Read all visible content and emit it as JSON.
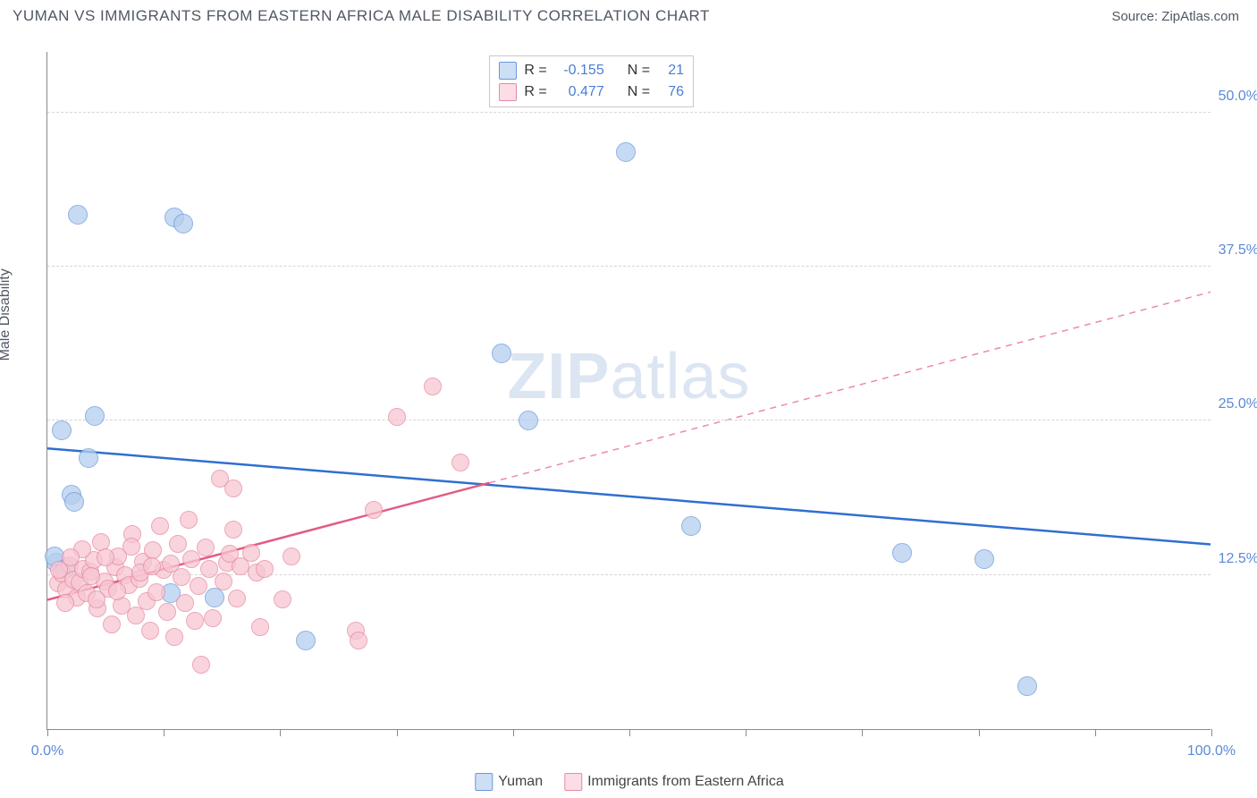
{
  "header": {
    "title": "YUMAN VS IMMIGRANTS FROM EASTERN AFRICA MALE DISABILITY CORRELATION CHART",
    "source": "Source: ZipAtlas.com"
  },
  "watermark": {
    "part1": "ZIP",
    "part2": "atlas"
  },
  "chart": {
    "type": "scatter",
    "y_axis_label": "Male Disability",
    "background_color": "#ffffff",
    "grid_color": "#d5d5d5",
    "axis_color": "#8a8a8a",
    "xlim": [
      0,
      100
    ],
    "ylim": [
      0,
      55
    ],
    "x_ticks": [
      0,
      10,
      20,
      30,
      40,
      50,
      60,
      70,
      80,
      90,
      100
    ],
    "x_tick_labels": {
      "0": "0.0%",
      "100": "100.0%"
    },
    "y_gridlines": [
      12.5,
      25.0,
      37.5,
      50.0
    ],
    "y_tick_labels": [
      "12.5%",
      "25.0%",
      "37.5%",
      "50.0%"
    ],
    "series": [
      {
        "name": "Yuman",
        "fill_color": "#b5cef0",
        "stroke_color": "#6a98d8",
        "swatch_fill": "#cddff5",
        "swatch_stroke": "#6a98d8",
        "marker_radius": 11,
        "R": "-0.155",
        "N": "21",
        "trend": {
          "color": "#2f6fd0",
          "width": 2.5,
          "x1": 0,
          "y1": 22.8,
          "x2": 100,
          "y2": 15.0,
          "dash_from_x": null
        },
        "points": [
          {
            "x": 1.2,
            "y": 24.2
          },
          {
            "x": 2.6,
            "y": 41.7
          },
          {
            "x": 2.1,
            "y": 19.0
          },
          {
            "x": 2.3,
            "y": 18.4
          },
          {
            "x": 3.5,
            "y": 22.0
          },
          {
            "x": 0.8,
            "y": 13.5
          },
          {
            "x": 4.1,
            "y": 25.4
          },
          {
            "x": 10.9,
            "y": 41.5
          },
          {
            "x": 11.7,
            "y": 41.0
          },
          {
            "x": 10.6,
            "y": 11.0
          },
          {
            "x": 14.4,
            "y": 10.7
          },
          {
            "x": 22.2,
            "y": 7.2
          },
          {
            "x": 39.0,
            "y": 30.5
          },
          {
            "x": 41.3,
            "y": 25.0
          },
          {
            "x": 49.7,
            "y": 46.8
          },
          {
            "x": 55.3,
            "y": 16.5
          },
          {
            "x": 73.4,
            "y": 14.3
          },
          {
            "x": 80.5,
            "y": 13.8
          },
          {
            "x": 84.2,
            "y": 3.5
          },
          {
            "x": 0.6,
            "y": 14.0
          },
          {
            "x": 1.5,
            "y": 13.0
          }
        ]
      },
      {
        "name": "Immigrants from Eastern Africa",
        "fill_color": "#f7c6d2",
        "stroke_color": "#e68aa3",
        "swatch_fill": "#fbdde5",
        "swatch_stroke": "#e68aa3",
        "marker_radius": 10,
        "R": "0.477",
        "N": "76",
        "trend": {
          "color": "#e35b82",
          "width": 2.5,
          "x1": 0,
          "y1": 10.5,
          "x2": 100,
          "y2": 35.5,
          "dash_from_x": 38
        },
        "points": [
          {
            "x": 0.9,
            "y": 11.8
          },
          {
            "x": 1.2,
            "y": 12.6
          },
          {
            "x": 1.6,
            "y": 11.3
          },
          {
            "x": 1.9,
            "y": 13.3
          },
          {
            "x": 2.2,
            "y": 12.1
          },
          {
            "x": 2.5,
            "y": 10.7
          },
          {
            "x": 2.8,
            "y": 11.9
          },
          {
            "x": 3.1,
            "y": 13.0
          },
          {
            "x": 3.4,
            "y": 11.0
          },
          {
            "x": 3.7,
            "y": 12.8
          },
          {
            "x": 4.0,
            "y": 13.7
          },
          {
            "x": 4.3,
            "y": 9.8
          },
          {
            "x": 4.6,
            "y": 15.2
          },
          {
            "x": 4.9,
            "y": 12.0
          },
          {
            "x": 5.2,
            "y": 11.4
          },
          {
            "x": 5.5,
            "y": 8.5
          },
          {
            "x": 5.8,
            "y": 13.1
          },
          {
            "x": 6.1,
            "y": 14.0
          },
          {
            "x": 6.4,
            "y": 10.0
          },
          {
            "x": 6.7,
            "y": 12.5
          },
          {
            "x": 7.0,
            "y": 11.7
          },
          {
            "x": 7.3,
            "y": 15.8
          },
          {
            "x": 7.6,
            "y": 9.2
          },
          {
            "x": 7.9,
            "y": 12.2
          },
          {
            "x": 8.2,
            "y": 13.6
          },
          {
            "x": 8.5,
            "y": 10.4
          },
          {
            "x": 8.8,
            "y": 8.0
          },
          {
            "x": 9.1,
            "y": 14.5
          },
          {
            "x": 9.4,
            "y": 11.1
          },
          {
            "x": 9.7,
            "y": 16.5
          },
          {
            "x": 10.0,
            "y": 12.9
          },
          {
            "x": 10.3,
            "y": 9.5
          },
          {
            "x": 10.6,
            "y": 13.4
          },
          {
            "x": 10.9,
            "y": 7.5
          },
          {
            "x": 11.2,
            "y": 15.0
          },
          {
            "x": 11.5,
            "y": 12.3
          },
          {
            "x": 11.8,
            "y": 10.2
          },
          {
            "x": 12.1,
            "y": 17.0
          },
          {
            "x": 12.4,
            "y": 13.8
          },
          {
            "x": 12.7,
            "y": 8.8
          },
          {
            "x": 13.0,
            "y": 11.6
          },
          {
            "x": 13.2,
            "y": 5.2
          },
          {
            "x": 13.6,
            "y": 14.7
          },
          {
            "x": 13.9,
            "y": 13.0
          },
          {
            "x": 14.2,
            "y": 9.0
          },
          {
            "x": 14.8,
            "y": 20.3
          },
          {
            "x": 15.1,
            "y": 12.0
          },
          {
            "x": 15.4,
            "y": 13.5
          },
          {
            "x": 15.7,
            "y": 14.2
          },
          {
            "x": 16.0,
            "y": 16.2
          },
          {
            "x": 16.0,
            "y": 19.5
          },
          {
            "x": 16.3,
            "y": 10.6
          },
          {
            "x": 16.6,
            "y": 13.2
          },
          {
            "x": 17.5,
            "y": 14.3
          },
          {
            "x": 18.0,
            "y": 12.7
          },
          {
            "x": 18.3,
            "y": 8.3
          },
          {
            "x": 18.7,
            "y": 13.0
          },
          {
            "x": 20.2,
            "y": 10.5
          },
          {
            "x": 21.0,
            "y": 14.0
          },
          {
            "x": 26.5,
            "y": 8.0
          },
          {
            "x": 26.7,
            "y": 7.2
          },
          {
            "x": 28.0,
            "y": 17.8
          },
          {
            "x": 30.0,
            "y": 25.3
          },
          {
            "x": 33.1,
            "y": 27.8
          },
          {
            "x": 35.5,
            "y": 21.6
          },
          {
            "x": 3.0,
            "y": 14.6
          },
          {
            "x": 4.2,
            "y": 10.5
          },
          {
            "x": 5.0,
            "y": 13.9
          },
          {
            "x": 6.0,
            "y": 11.2
          },
          {
            "x": 7.2,
            "y": 14.8
          },
          {
            "x": 8.0,
            "y": 12.7
          },
          {
            "x": 9.0,
            "y": 13.2
          },
          {
            "x": 1.5,
            "y": 10.2
          },
          {
            "x": 2.0,
            "y": 13.9
          },
          {
            "x": 3.8,
            "y": 12.4
          },
          {
            "x": 1.0,
            "y": 12.9
          }
        ]
      }
    ],
    "legend_labels": {
      "series1": "Yuman",
      "series2": "Immigrants from Eastern Africa"
    },
    "stats_labels": {
      "R": "R =",
      "N": "N ="
    }
  }
}
